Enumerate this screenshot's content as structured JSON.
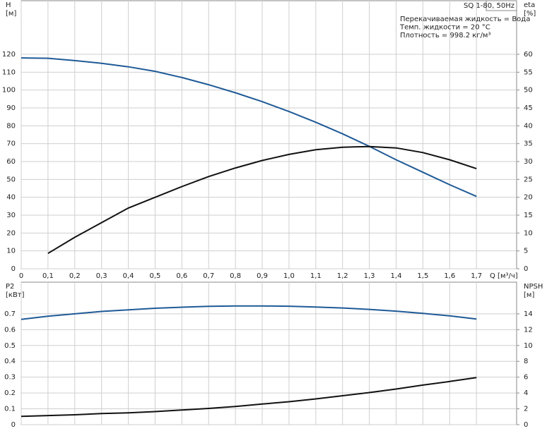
{
  "chart_data": [
    {
      "type": "line",
      "title": "SQ 1-80, 50Hz",
      "annotations": [
        "Перекачиваемая жидкость = Вода",
        "Темп. жидкости = 20 °C",
        "Плотность = 998.2 кг/м³"
      ],
      "xlabel": "Q [м³/ч]",
      "ylabel": "H",
      "yunit": "[м]",
      "y2label": "eta",
      "y2unit": "[%]",
      "x": [
        0,
        0.1,
        0.2,
        0.3,
        0.4,
        0.5,
        0.6,
        0.7,
        0.8,
        0.9,
        1.0,
        1.1,
        1.2,
        1.3,
        1.4,
        1.5,
        1.6,
        1.7
      ],
      "xlim": [
        0,
        1.85
      ],
      "xticks": [
        0,
        {
          "value": 0.1,
          "label": "0,1"
        },
        {
          "value": 0.2,
          "label": "0,2"
        },
        {
          "value": 0.3,
          "label": "0,3"
        },
        {
          "value": 0.4,
          "label": "0,4"
        },
        {
          "value": 0.5,
          "label": "0,5"
        },
        {
          "value": 0.6,
          "label": "0,6"
        },
        {
          "value": 0.7,
          "label": "0,7"
        },
        {
          "value": 0.8,
          "label": "0,8"
        },
        {
          "value": 0.9,
          "label": "0,9"
        },
        {
          "value": 1.0,
          "label": "1,0"
        },
        {
          "value": 1.1,
          "label": "1,1"
        },
        {
          "value": 1.2,
          "label": "1,2"
        },
        {
          "value": 1.3,
          "label": "1,3"
        },
        {
          "value": 1.4,
          "label": "1,4"
        },
        {
          "value": 1.5,
          "label": "1,5"
        },
        {
          "value": 1.6,
          "label": "1,6"
        },
        {
          "value": 1.7,
          "label": "1,7"
        }
      ],
      "ylim": [
        0,
        150
      ],
      "yticks": [
        0,
        10,
        20,
        30,
        40,
        50,
        60,
        70,
        80,
        90,
        100,
        110,
        120
      ],
      "y2lim": [
        0,
        75
      ],
      "y2ticks": [
        0,
        5,
        10,
        15,
        20,
        25,
        30,
        35,
        40,
        45,
        50,
        55,
        60
      ],
      "grid": true,
      "series": [
        {
          "color": "#1f5a96",
          "values": [
            118,
            117.8,
            116.5,
            115,
            113,
            110.5,
            107,
            103,
            98.5,
            93.5,
            88,
            82,
            75.5,
            68.5,
            61,
            54,
            47,
            40.5
          ]
        },
        {
          "color": "#111111",
          "axis": "y2",
          "values": [
            null,
            4.3,
            8.8,
            12.9,
            17,
            20,
            23,
            25.8,
            28.2,
            30.3,
            32,
            33.3,
            34,
            34.2,
            33.8,
            32.5,
            30.5,
            28
          ]
        }
      ]
    },
    {
      "type": "line",
      "ylabel": "P2",
      "yunit": "[кВт]",
      "y2label": "NPSH",
      "y2unit": "[м]",
      "x": [
        0,
        0.1,
        0.2,
        0.3,
        0.4,
        0.5,
        0.6,
        0.7,
        0.8,
        0.9,
        1.0,
        1.1,
        1.2,
        1.3,
        1.4,
        1.5,
        1.6,
        1.7
      ],
      "xlim": [
        0,
        1.85
      ],
      "xticks": [
        0,
        0.1,
        0.2,
        0.3,
        0.4,
        0.5,
        0.6,
        0.7,
        0.8,
        0.9,
        1.0,
        1.1,
        1.2,
        1.3,
        1.4,
        1.5,
        1.6,
        1.7
      ],
      "ylim": [
        0,
        0.9
      ],
      "yticks": [
        0,
        0.1,
        0.2,
        0.3,
        0.4,
        0.5,
        0.6,
        0.7
      ],
      "y2lim": [
        0,
        18
      ],
      "y2ticks": [
        0,
        2,
        4,
        6,
        8,
        10,
        12,
        14
      ],
      "grid": true,
      "series": [
        {
          "color": "#1f5a96",
          "values": [
            0.665,
            0.685,
            0.7,
            0.715,
            0.725,
            0.735,
            0.742,
            0.747,
            0.75,
            0.75,
            0.748,
            0.743,
            0.737,
            0.728,
            0.717,
            0.703,
            0.687,
            0.667
          ]
        },
        {
          "color": "#111111",
          "axis": "y2",
          "values": [
            1.05,
            1.15,
            1.25,
            1.4,
            1.5,
            1.65,
            1.85,
            2.05,
            2.3,
            2.6,
            2.9,
            3.25,
            3.65,
            4.05,
            4.5,
            5.0,
            5.45,
            5.95
          ]
        }
      ]
    }
  ]
}
